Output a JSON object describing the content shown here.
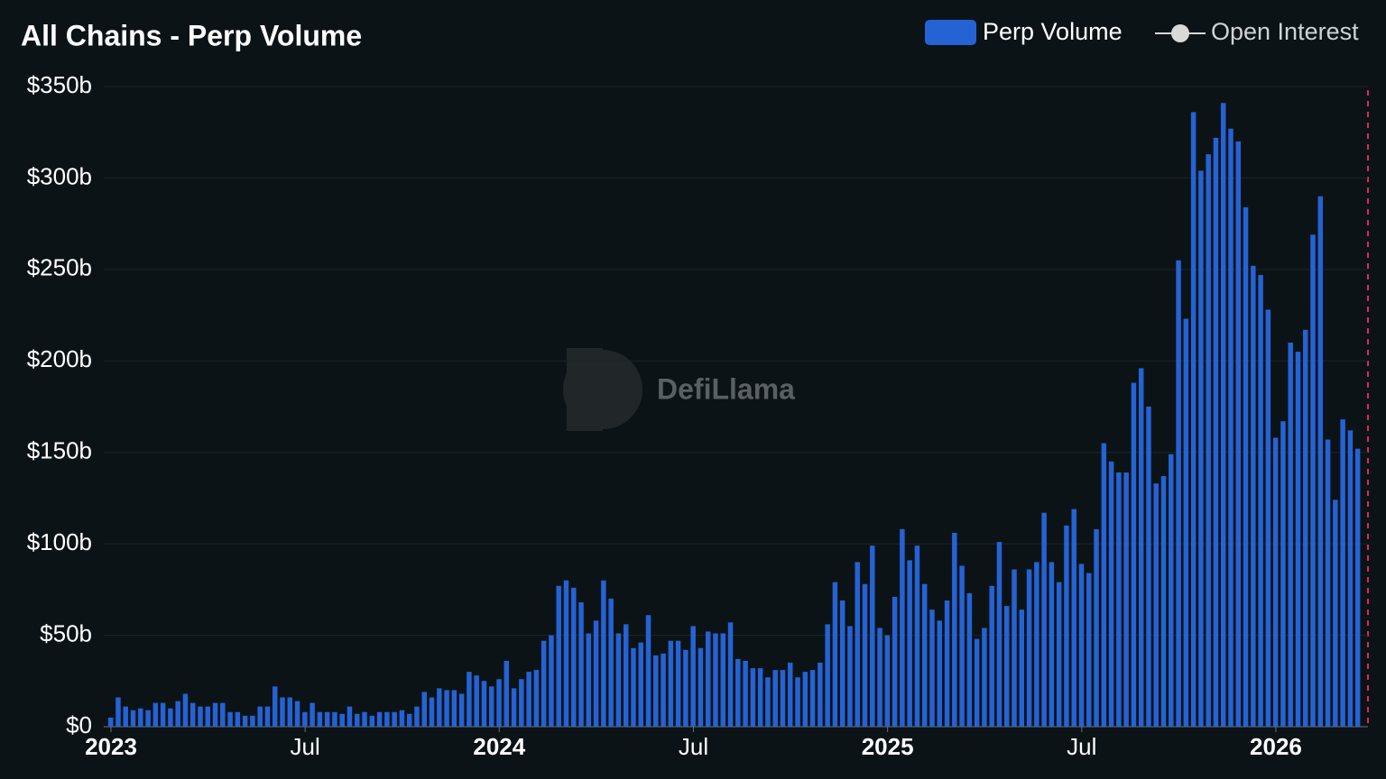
{
  "chart_data": {
    "type": "bar",
    "title": "All Chains - Perp Volume",
    "watermark": "DefiLlama",
    "categories": [
      "2023",
      null,
      null,
      null,
      null,
      null,
      null,
      null,
      null,
      null,
      null,
      null,
      null,
      null,
      null,
      null,
      null,
      null,
      null,
      null,
      null,
      null,
      null,
      null,
      null,
      null,
      "Jul",
      null,
      null,
      null,
      null,
      null,
      null,
      null,
      null,
      null,
      null,
      null,
      null,
      null,
      null,
      null,
      null,
      null,
      null,
      null,
      null,
      null,
      null,
      null,
      null,
      null,
      "2024",
      null,
      null,
      null,
      null,
      null,
      null,
      null,
      null,
      null,
      null,
      null,
      null,
      null,
      null,
      null,
      null,
      null,
      null,
      null,
      null,
      null,
      null,
      null,
      null,
      null,
      "Jul",
      null,
      null,
      null,
      null,
      null,
      null,
      null,
      null,
      null,
      null,
      null,
      null,
      null,
      null,
      null,
      null,
      null,
      null,
      null,
      null,
      null,
      null,
      null,
      null,
      null,
      "2025",
      null,
      null,
      null,
      null,
      null,
      null,
      null,
      null,
      null,
      null,
      null,
      null,
      null,
      null,
      null,
      null,
      null,
      null,
      null,
      null,
      null,
      null,
      null,
      null,
      null,
      "Jul",
      null,
      null,
      null,
      null,
      null,
      null,
      null,
      null,
      null,
      null,
      null,
      null,
      null,
      null,
      null,
      null,
      null,
      null,
      null,
      null,
      null,
      null,
      null,
      null,
      null,
      "2026",
      null,
      null,
      null,
      null,
      null,
      null,
      null,
      null,
      null,
      null,
      null
    ],
    "series": [
      {
        "name": "Perp Volume",
        "color": "#2563d4",
        "values": [
          5,
          16,
          11,
          9,
          10,
          9,
          13,
          13,
          10,
          14,
          18,
          13,
          11,
          11,
          13,
          13,
          8,
          8,
          6,
          6,
          11,
          11,
          22,
          16,
          16,
          14,
          8,
          13,
          8,
          8,
          8,
          7,
          11,
          7,
          8,
          6,
          8,
          8,
          8,
          9,
          7,
          11,
          19,
          16,
          21,
          20,
          20,
          18,
          30,
          28,
          25,
          22,
          26,
          36,
          21,
          26,
          30,
          31,
          47,
          50,
          77,
          80,
          76,
          68,
          51,
          58,
          80,
          70,
          51,
          56,
          43,
          46,
          61,
          39,
          40,
          47,
          47,
          42,
          55,
          43,
          52,
          51,
          51,
          57,
          37,
          36,
          32,
          32,
          27,
          31,
          31,
          35,
          27,
          30,
          31,
          35,
          56,
          79,
          69,
          55,
          90,
          78,
          99,
          54,
          50,
          71,
          108,
          91,
          99,
          78,
          64,
          58,
          69,
          106,
          88,
          73,
          48,
          54,
          77,
          101,
          66,
          86,
          64,
          86,
          90,
          117,
          90,
          79,
          110,
          119,
          89,
          84,
          108,
          155,
          145,
          139,
          139,
          188,
          196,
          175,
          133,
          137,
          149,
          255,
          223,
          336,
          304,
          313,
          322,
          341,
          327,
          320,
          284,
          252,
          247,
          228,
          158,
          167,
          210,
          205,
          217,
          269,
          290,
          157,
          124,
          168,
          162,
          152
        ]
      }
    ],
    "hidden_series": [
      {
        "name": "Open Interest",
        "color": "#d9d9d9"
      }
    ],
    "ylim": [
      0,
      350
    ],
    "yticks": [
      {
        "value": 0,
        "label": "$0"
      },
      {
        "value": 50,
        "label": "$50b"
      },
      {
        "value": 100,
        "label": "$100b"
      },
      {
        "value": 150,
        "label": "$150b"
      },
      {
        "value": 200,
        "label": "$200b"
      },
      {
        "value": 250,
        "label": "$250b"
      },
      {
        "value": 300,
        "label": "$300b"
      },
      {
        "value": 350,
        "label": "$350b"
      }
    ],
    "grid": true
  }
}
